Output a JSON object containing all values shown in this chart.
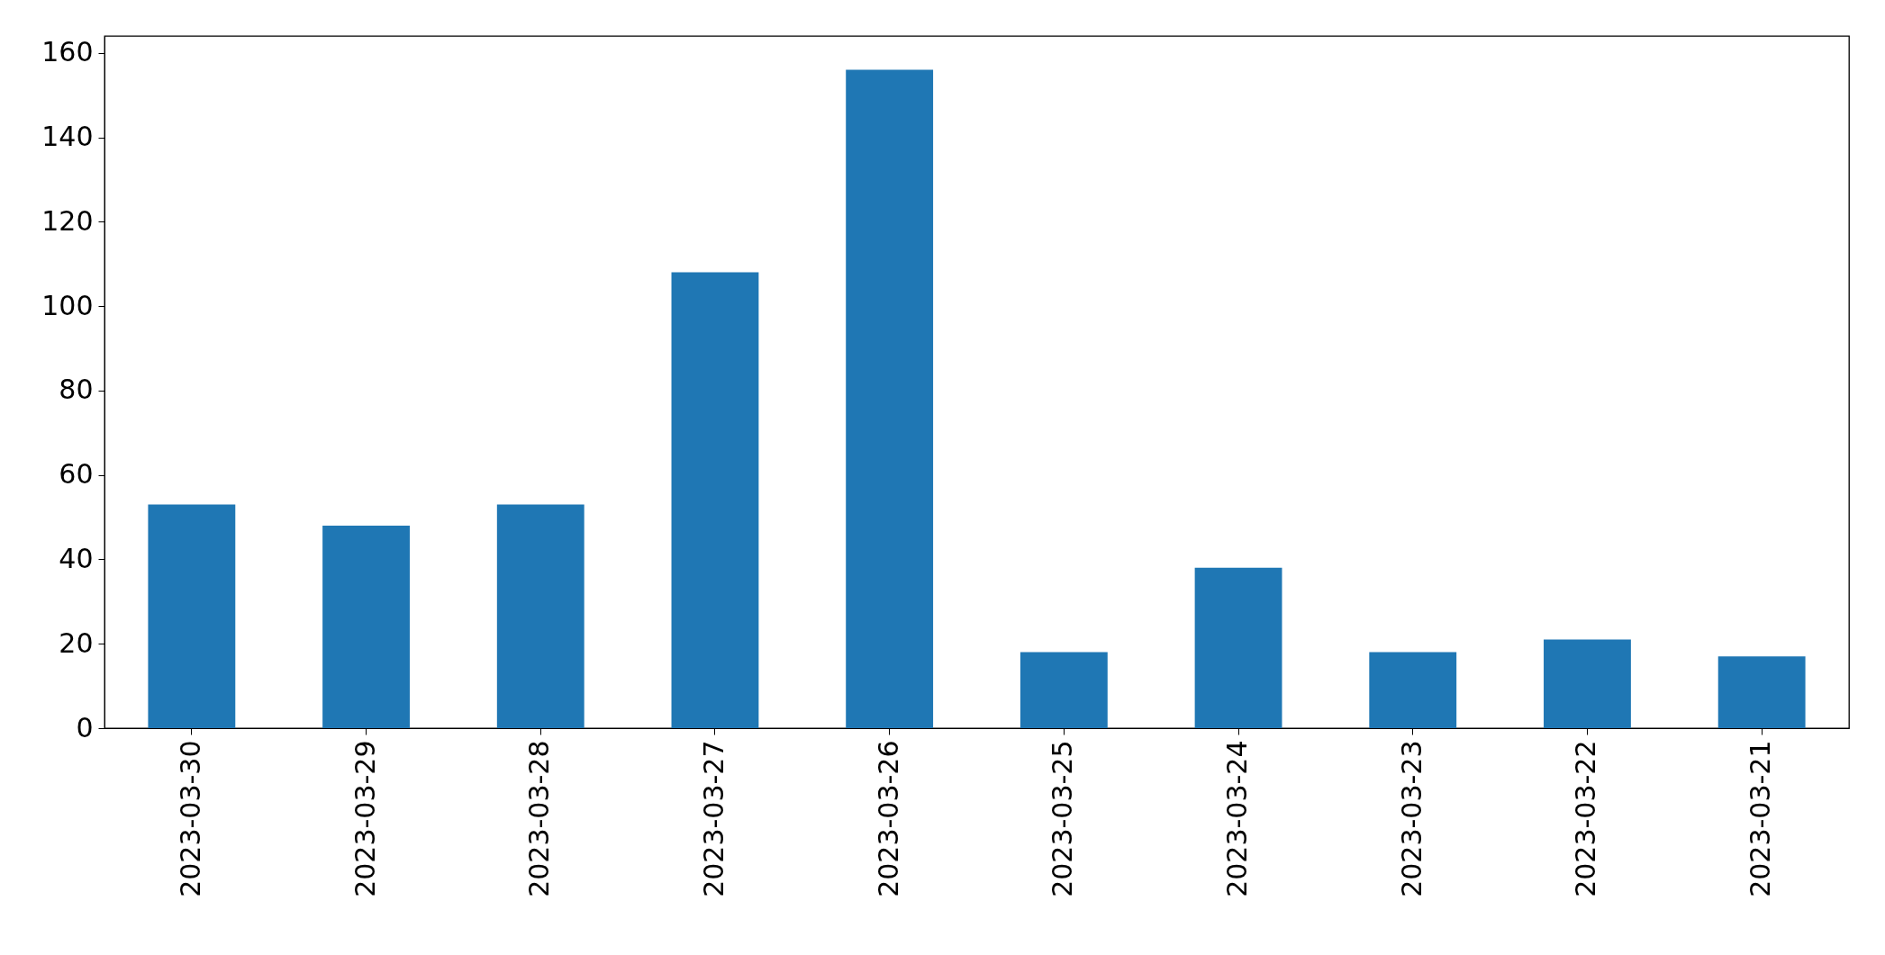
{
  "chart_data": {
    "type": "bar",
    "categories": [
      "2023-03-30",
      "2023-03-29",
      "2023-03-28",
      "2023-03-27",
      "2023-03-26",
      "2023-03-25",
      "2023-03-24",
      "2023-03-23",
      "2023-03-22",
      "2023-03-21"
    ],
    "values": [
      53,
      48,
      53,
      108,
      156,
      18,
      38,
      18,
      21,
      17
    ],
    "color": "#1f77b4",
    "ylim": [
      0,
      164
    ],
    "yticks": [
      0,
      20,
      40,
      60,
      80,
      100,
      120,
      140,
      160
    ],
    "grid": false,
    "legend": false
  }
}
